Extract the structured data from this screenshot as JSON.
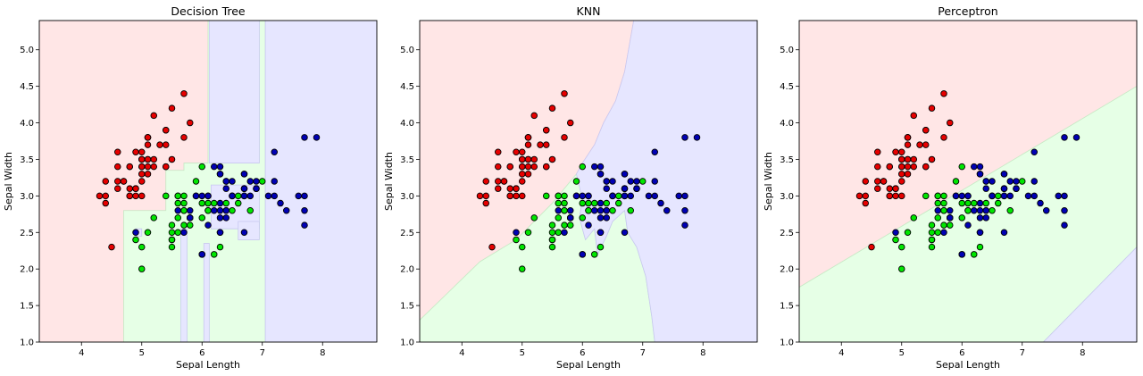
{
  "chart_data": [
    {
      "type": "scatter",
      "title": "Decision Tree",
      "xlabel": "Sepal Length",
      "ylabel": "Sepal Width",
      "xlim": [
        3.3,
        8.9
      ],
      "ylim": [
        1.0,
        5.4
      ],
      "xticks": [
        4,
        5,
        6,
        7,
        8
      ],
      "yticks": [
        1.0,
        1.5,
        2.0,
        2.5,
        3.0,
        3.5,
        4.0,
        4.5,
        5.0
      ],
      "grid": false,
      "region_colors": {
        "setosa": "#ffe6e6",
        "versicolor": "#e6ffe6",
        "virginica": "#e6e6ff"
      }
    },
    {
      "type": "scatter",
      "title": "KNN",
      "xlabel": "Sepal Length",
      "ylabel": "Sepal Width",
      "xlim": [
        3.3,
        8.9
      ],
      "ylim": [
        1.0,
        5.4
      ],
      "xticks": [
        4,
        5,
        6,
        7,
        8
      ],
      "yticks": [
        1.0,
        1.5,
        2.0,
        2.5,
        3.0,
        3.5,
        4.0,
        4.5,
        5.0
      ],
      "grid": false,
      "region_colors": {
        "setosa": "#ffe6e6",
        "versicolor": "#e6ffe6",
        "virginica": "#e6e6ff"
      }
    },
    {
      "type": "scatter",
      "title": "Perceptron",
      "xlabel": "Sepal Length",
      "ylabel": "Sepal Width",
      "xlim": [
        3.3,
        8.9
      ],
      "ylim": [
        1.0,
        5.4
      ],
      "xticks": [
        4,
        5,
        6,
        7,
        8
      ],
      "yticks": [
        1.0,
        1.5,
        2.0,
        2.5,
        3.0,
        3.5,
        4.0,
        4.5,
        5.0
      ],
      "grid": false,
      "region_colors": {
        "setosa": "#ffe6e6",
        "versicolor": "#e6ffe6",
        "virginica": "#e6e6ff"
      }
    }
  ],
  "point_colors": {
    "setosa": "#e60000",
    "versicolor": "#00e600",
    "virginica": "#0000b4"
  },
  "points": {
    "setosa": [
      [
        5.1,
        3.5
      ],
      [
        4.9,
        3.0
      ],
      [
        4.7,
        3.2
      ],
      [
        4.6,
        3.1
      ],
      [
        5.0,
        3.6
      ],
      [
        5.4,
        3.9
      ],
      [
        4.6,
        3.4
      ],
      [
        5.0,
        3.4
      ],
      [
        4.4,
        2.9
      ],
      [
        4.9,
        3.1
      ],
      [
        5.4,
        3.7
      ],
      [
        4.8,
        3.4
      ],
      [
        4.8,
        3.0
      ],
      [
        4.3,
        3.0
      ],
      [
        5.8,
        4.0
      ],
      [
        5.7,
        4.4
      ],
      [
        5.4,
        3.9
      ],
      [
        5.1,
        3.5
      ],
      [
        5.7,
        3.8
      ],
      [
        5.1,
        3.8
      ],
      [
        5.4,
        3.4
      ],
      [
        5.1,
        3.7
      ],
      [
        4.6,
        3.6
      ],
      [
        5.1,
        3.3
      ],
      [
        4.8,
        3.4
      ],
      [
        5.0,
        3.0
      ],
      [
        5.0,
        3.4
      ],
      [
        5.2,
        3.5
      ],
      [
        5.2,
        3.4
      ],
      [
        4.7,
        3.2
      ],
      [
        4.8,
        3.1
      ],
      [
        5.4,
        3.4
      ],
      [
        5.2,
        4.1
      ],
      [
        5.5,
        4.2
      ],
      [
        4.9,
        3.1
      ],
      [
        5.0,
        3.2
      ],
      [
        5.5,
        3.5
      ],
      [
        4.9,
        3.6
      ],
      [
        4.4,
        3.0
      ],
      [
        5.1,
        3.4
      ],
      [
        5.0,
        3.5
      ],
      [
        4.5,
        2.3
      ],
      [
        4.4,
        3.2
      ],
      [
        5.0,
        3.5
      ],
      [
        5.1,
        3.8
      ],
      [
        4.8,
        3.0
      ],
      [
        5.1,
        3.8
      ],
      [
        4.6,
        3.2
      ],
      [
        5.3,
        3.7
      ],
      [
        5.0,
        3.3
      ]
    ],
    "versicolor": [
      [
        7.0,
        3.2
      ],
      [
        6.4,
        3.2
      ],
      [
        6.9,
        3.1
      ],
      [
        5.5,
        2.3
      ],
      [
        6.5,
        2.8
      ],
      [
        5.7,
        2.8
      ],
      [
        6.3,
        3.3
      ],
      [
        4.9,
        2.4
      ],
      [
        6.6,
        2.9
      ],
      [
        5.2,
        2.7
      ],
      [
        5.0,
        2.0
      ],
      [
        5.9,
        3.0
      ],
      [
        6.0,
        2.2
      ],
      [
        6.1,
        2.9
      ],
      [
        5.6,
        2.9
      ],
      [
        6.7,
        3.1
      ],
      [
        5.6,
        3.0
      ],
      [
        5.8,
        2.7
      ],
      [
        6.2,
        2.2
      ],
      [
        5.6,
        2.5
      ],
      [
        5.9,
        3.2
      ],
      [
        6.1,
        2.8
      ],
      [
        6.3,
        2.5
      ],
      [
        6.1,
        2.8
      ],
      [
        6.4,
        2.9
      ],
      [
        6.6,
        3.0
      ],
      [
        6.8,
        2.8
      ],
      [
        6.7,
        3.0
      ],
      [
        6.0,
        2.9
      ],
      [
        5.7,
        2.6
      ],
      [
        5.5,
        2.4
      ],
      [
        5.5,
        2.4
      ],
      [
        5.8,
        2.7
      ],
      [
        6.0,
        2.7
      ],
      [
        5.4,
        3.0
      ],
      [
        6.0,
        3.4
      ],
      [
        6.7,
        3.1
      ],
      [
        6.3,
        2.3
      ],
      [
        5.6,
        3.0
      ],
      [
        5.5,
        2.5
      ],
      [
        5.5,
        2.6
      ],
      [
        6.1,
        3.0
      ],
      [
        5.8,
        2.6
      ],
      [
        5.0,
        2.3
      ],
      [
        5.6,
        2.7
      ],
      [
        5.7,
        3.0
      ],
      [
        5.7,
        2.9
      ],
      [
        6.2,
        2.9
      ],
      [
        5.1,
        2.5
      ],
      [
        5.7,
        2.8
      ]
    ],
    "virginica": [
      [
        6.3,
        3.3
      ],
      [
        5.8,
        2.7
      ],
      [
        7.1,
        3.0
      ],
      [
        6.3,
        2.9
      ],
      [
        6.5,
        3.0
      ],
      [
        7.6,
        3.0
      ],
      [
        4.9,
        2.5
      ],
      [
        7.3,
        2.9
      ],
      [
        6.7,
        2.5
      ],
      [
        7.2,
        3.6
      ],
      [
        6.5,
        3.2
      ],
      [
        6.4,
        2.7
      ],
      [
        6.8,
        3.0
      ],
      [
        5.7,
        2.5
      ],
      [
        5.8,
        2.8
      ],
      [
        6.4,
        3.2
      ],
      [
        6.5,
        3.0
      ],
      [
        7.7,
        3.8
      ],
      [
        7.7,
        2.6
      ],
      [
        6.0,
        2.2
      ],
      [
        6.9,
        3.2
      ],
      [
        5.6,
        2.8
      ],
      [
        7.7,
        2.8
      ],
      [
        6.3,
        2.7
      ],
      [
        6.7,
        3.3
      ],
      [
        7.2,
        3.2
      ],
      [
        6.2,
        2.8
      ],
      [
        6.1,
        3.0
      ],
      [
        6.4,
        2.8
      ],
      [
        7.2,
        3.0
      ],
      [
        7.4,
        2.8
      ],
      [
        7.9,
        3.8
      ],
      [
        6.4,
        2.8
      ],
      [
        6.3,
        2.8
      ],
      [
        6.1,
        2.6
      ],
      [
        7.7,
        3.0
      ],
      [
        6.3,
        3.4
      ],
      [
        6.4,
        3.1
      ],
      [
        6.0,
        3.0
      ],
      [
        6.9,
        3.1
      ],
      [
        6.7,
        3.1
      ],
      [
        6.9,
        3.1
      ],
      [
        5.8,
        2.7
      ],
      [
        6.8,
        3.2
      ],
      [
        6.7,
        3.3
      ],
      [
        6.7,
        3.0
      ],
      [
        6.3,
        2.5
      ],
      [
        6.5,
        3.0
      ],
      [
        6.2,
        3.4
      ],
      [
        5.9,
        3.0
      ]
    ]
  }
}
